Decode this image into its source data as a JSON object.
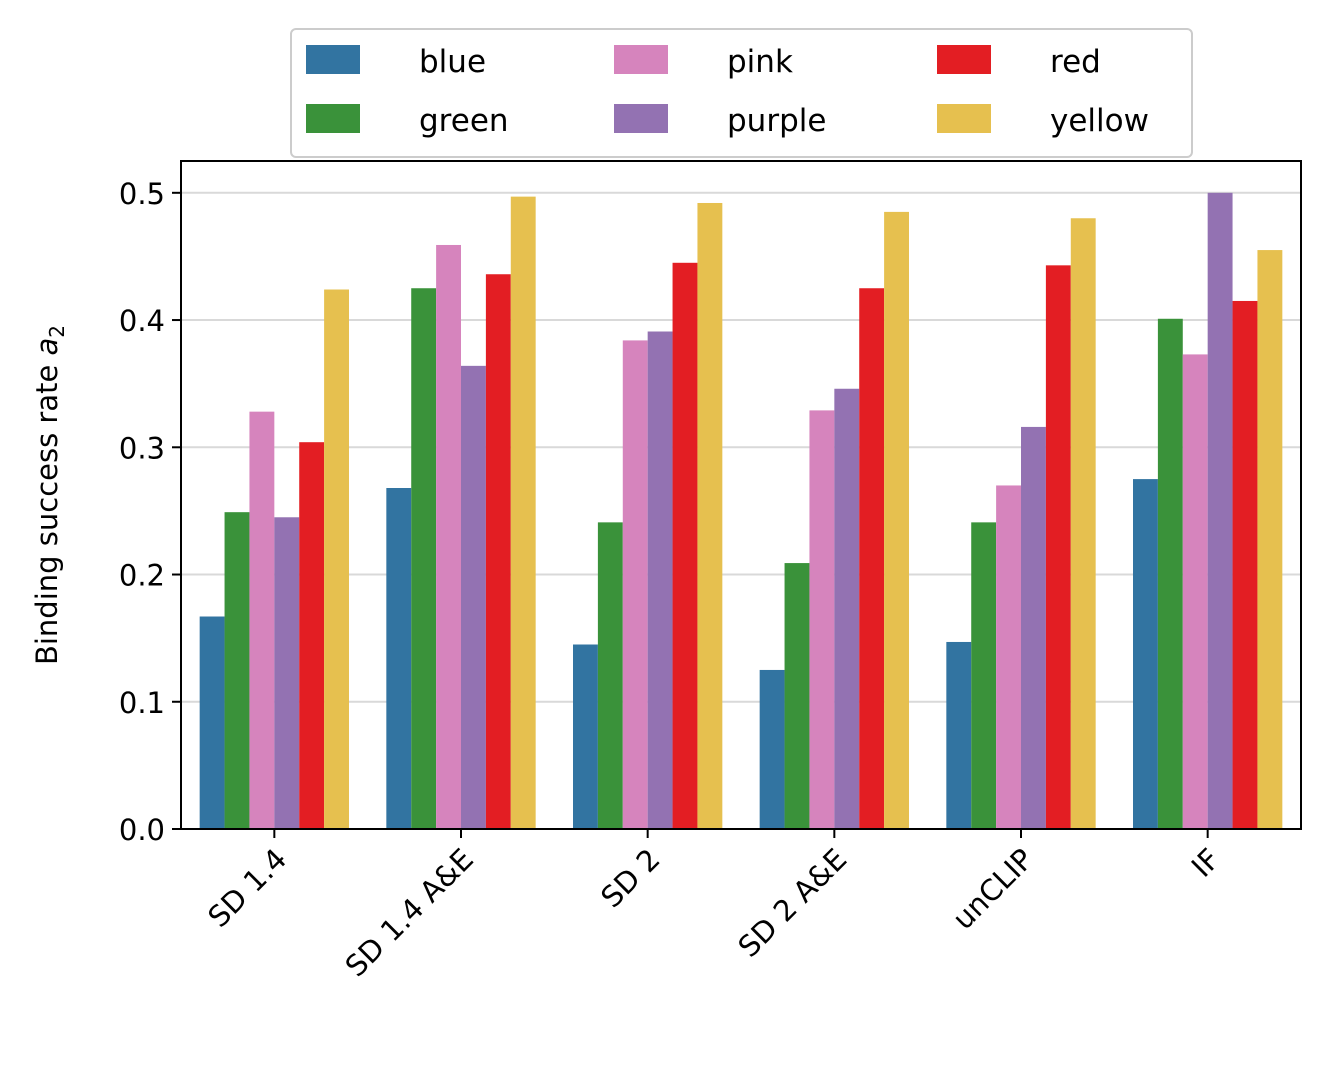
{
  "chart_data": {
    "type": "bar",
    "categories": [
      "SD 1.4",
      "SD 1.4 A&E",
      "SD 2",
      "SD 2 A&E",
      "unCLIP",
      "IF"
    ],
    "series": [
      {
        "name": "blue",
        "color": "#3274a1",
        "values": [
          0.167,
          0.268,
          0.145,
          0.125,
          0.147,
          0.275
        ]
      },
      {
        "name": "green",
        "color": "#3a923a",
        "values": [
          0.249,
          0.425,
          0.241,
          0.209,
          0.241,
          0.401
        ]
      },
      {
        "name": "pink",
        "color": "#d684bd",
        "values": [
          0.328,
          0.459,
          0.384,
          0.329,
          0.27,
          0.373
        ]
      },
      {
        "name": "purple",
        "color": "#9372b2",
        "values": [
          0.245,
          0.364,
          0.391,
          0.346,
          0.316,
          0.5
        ]
      },
      {
        "name": "red",
        "color": "#e31e23",
        "values": [
          0.304,
          0.436,
          0.445,
          0.425,
          0.443,
          0.415
        ]
      },
      {
        "name": "yellow",
        "color": "#e6c04f",
        "values": [
          0.424,
          0.497,
          0.492,
          0.485,
          0.48,
          0.455
        ]
      }
    ],
    "ylabel_text": "Binding success rate ",
    "ylabel_var": "a",
    "ylabel_sub": "2",
    "xlabel": "",
    "ylim": [
      0,
      0.525
    ],
    "yticks": [
      "0.0",
      "0.1",
      "0.2",
      "0.3",
      "0.4",
      "0.5"
    ],
    "ytick_values": [
      0,
      0.1,
      0.2,
      0.3,
      0.4,
      0.5
    ],
    "grid": "horizontal",
    "legend_position": "above plot, 3 columns"
  }
}
